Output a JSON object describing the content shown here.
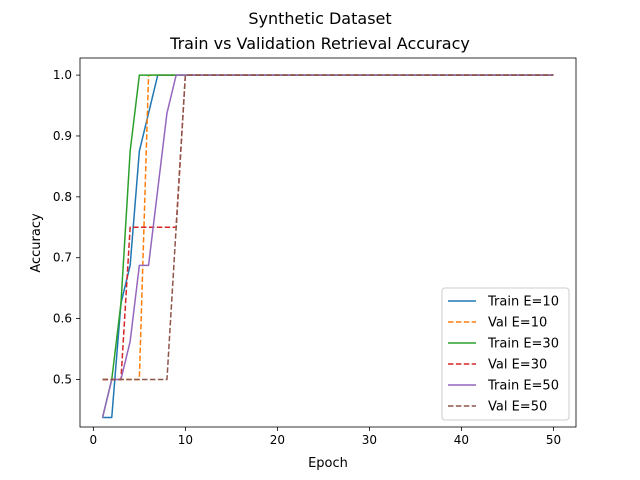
{
  "chart_data": {
    "type": "line",
    "title": "Synthetic Dataset",
    "subtitle": "Train vs Validation Retrieval Accuracy",
    "xlabel": "Epoch",
    "ylabel": "Accuracy",
    "xlim": [
      -1.45,
      52.45
    ],
    "ylim": [
      0.4219,
      1.0281
    ],
    "xticks": [
      0,
      10,
      20,
      30,
      40,
      50
    ],
    "yticks": [
      0.5,
      0.6,
      0.7,
      0.8,
      0.9,
      1.0
    ],
    "xtick_labels": [
      "0",
      "10",
      "20",
      "30",
      "40",
      "50"
    ],
    "ytick_labels": [
      "0.5",
      "0.6",
      "0.7",
      "0.8",
      "0.9",
      "1.0"
    ],
    "grid": false,
    "legend_position": "lower-right",
    "series": [
      {
        "name": "Train E=10",
        "color": "#1f77b4",
        "dash": "solid",
        "points": [
          [
            1,
            0.4375
          ],
          [
            2,
            0.4375
          ],
          [
            3,
            0.625
          ],
          [
            4,
            0.6875
          ],
          [
            5,
            0.875
          ],
          [
            6,
            0.9375
          ],
          [
            7,
            1.0
          ],
          [
            50,
            1.0
          ]
        ]
      },
      {
        "name": "Val E=10",
        "color": "#ff7f0e",
        "dash": "dashed",
        "points": [
          [
            1,
            0.5
          ],
          [
            5,
            0.5
          ],
          [
            6,
            1.0
          ],
          [
            50,
            1.0
          ]
        ]
      },
      {
        "name": "Train E=30",
        "color": "#2ca02c",
        "dash": "solid",
        "points": [
          [
            1,
            0.4375
          ],
          [
            2,
            0.5
          ],
          [
            3,
            0.625
          ],
          [
            4,
            0.875
          ],
          [
            5,
            1.0
          ],
          [
            50,
            1.0
          ]
        ]
      },
      {
        "name": "Val E=30",
        "color": "#d62728",
        "dash": "dashed",
        "points": [
          [
            1,
            0.5
          ],
          [
            3,
            0.5
          ],
          [
            4,
            0.75
          ],
          [
            9,
            0.75
          ],
          [
            10,
            1.0
          ],
          [
            50,
            1.0
          ]
        ]
      },
      {
        "name": "Train E=50",
        "color": "#9467bd",
        "dash": "solid",
        "points": [
          [
            1,
            0.4375
          ],
          [
            2,
            0.5
          ],
          [
            3,
            0.5
          ],
          [
            4,
            0.5625
          ],
          [
            5,
            0.6875
          ],
          [
            6,
            0.6875
          ],
          [
            7,
            0.8125
          ],
          [
            8,
            0.9375
          ],
          [
            9,
            1.0
          ],
          [
            50,
            1.0
          ]
        ]
      },
      {
        "name": "Val E=50",
        "color": "#8c564b",
        "dash": "dashed",
        "points": [
          [
            1,
            0.5
          ],
          [
            8,
            0.5
          ],
          [
            10,
            1.0
          ],
          [
            50,
            1.0
          ]
        ]
      }
    ]
  }
}
